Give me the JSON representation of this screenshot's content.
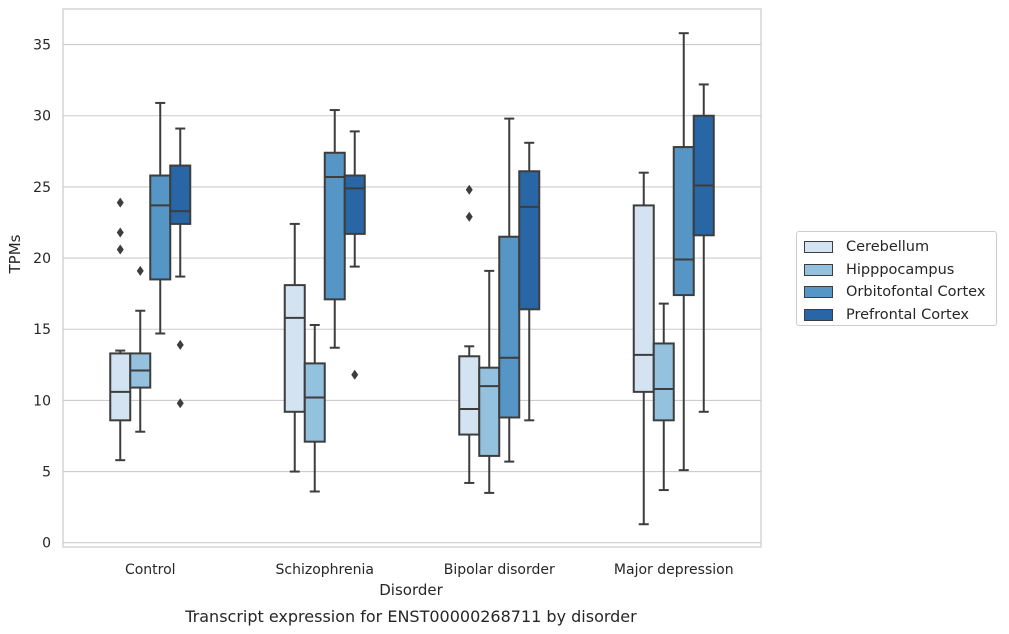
{
  "chart_data": {
    "type": "box",
    "title": "",
    "caption": "Transcript expression for ENST00000268711 by disorder",
    "xlabel": "Disorder",
    "ylabel": "TPMs",
    "ylim": [
      -0.3,
      37.5
    ],
    "yticks": [
      0,
      5,
      10,
      15,
      20,
      25,
      30,
      35
    ],
    "ytick_labels": [
      "0",
      "5",
      "10",
      "15",
      "20",
      "25",
      "30",
      "35"
    ],
    "grid": "horizontal",
    "legend_position": "right",
    "categories": [
      "Control",
      "Schizophrenia",
      "Bipolar disorder",
      "Major depression"
    ],
    "series": [
      {
        "name": "Cerebellum",
        "color": "#d3e3f2",
        "boxes": [
          {
            "whisker_low": 5.8,
            "q1": 8.6,
            "median": 10.6,
            "q3": 13.3,
            "whisker_high": 13.5,
            "outliers": [
              20.6,
              21.8,
              23.9
            ]
          },
          {
            "whisker_low": 5.0,
            "q1": 9.2,
            "median": 15.8,
            "q3": 18.1,
            "whisker_high": 22.4,
            "outliers": []
          },
          {
            "whisker_low": 4.2,
            "q1": 7.6,
            "median": 9.4,
            "q3": 13.1,
            "whisker_high": 13.8,
            "outliers": [
              22.9,
              24.8
            ]
          },
          {
            "whisker_low": 1.3,
            "q1": 10.6,
            "median": 13.2,
            "q3": 23.7,
            "whisker_high": 26.0,
            "outliers": []
          }
        ]
      },
      {
        "name": "Hipppocampus",
        "color": "#94c1de",
        "boxes": [
          {
            "whisker_low": 7.8,
            "q1": 10.9,
            "median": 12.1,
            "q3": 13.3,
            "whisker_high": 16.3,
            "outliers": [
              19.1
            ]
          },
          {
            "whisker_low": 3.6,
            "q1": 7.1,
            "median": 10.2,
            "q3": 12.6,
            "whisker_high": 15.3,
            "outliers": []
          },
          {
            "whisker_low": 3.5,
            "q1": 6.1,
            "median": 11.0,
            "q3": 12.3,
            "whisker_high": 19.1,
            "outliers": []
          },
          {
            "whisker_low": 3.7,
            "q1": 8.6,
            "median": 10.8,
            "q3": 14.0,
            "whisker_high": 16.8,
            "outliers": []
          }
        ]
      },
      {
        "name": "Orbitofontal Cortex",
        "color": "#5596c6",
        "boxes": [
          {
            "whisker_low": 14.7,
            "q1": 18.5,
            "median": 23.7,
            "q3": 25.8,
            "whisker_high": 30.9,
            "outliers": []
          },
          {
            "whisker_low": 13.7,
            "q1": 17.1,
            "median": 25.7,
            "q3": 27.4,
            "whisker_high": 30.4,
            "outliers": []
          },
          {
            "whisker_low": 5.7,
            "q1": 8.8,
            "median": 13.0,
            "q3": 21.5,
            "whisker_high": 29.8,
            "outliers": []
          },
          {
            "whisker_low": 5.1,
            "q1": 17.4,
            "median": 19.9,
            "q3": 27.8,
            "whisker_high": 35.8,
            "outliers": []
          }
        ]
      },
      {
        "name": "Prefrontal Cortex",
        "color": "#2866a6",
        "boxes": [
          {
            "whisker_low": 18.7,
            "q1": 22.4,
            "median": 23.3,
            "q3": 26.5,
            "whisker_high": 29.1,
            "outliers": [
              9.8,
              13.9
            ]
          },
          {
            "whisker_low": 19.4,
            "q1": 21.7,
            "median": 24.9,
            "q3": 25.8,
            "whisker_high": 28.9,
            "outliers": [
              11.8
            ]
          },
          {
            "whisker_low": 8.6,
            "q1": 16.4,
            "median": 23.6,
            "q3": 26.1,
            "whisker_high": 28.1,
            "outliers": []
          },
          {
            "whisker_low": 9.2,
            "q1": 21.6,
            "median": 25.1,
            "q3": 30.0,
            "whisker_high": 32.2,
            "outliers": []
          }
        ]
      }
    ]
  }
}
